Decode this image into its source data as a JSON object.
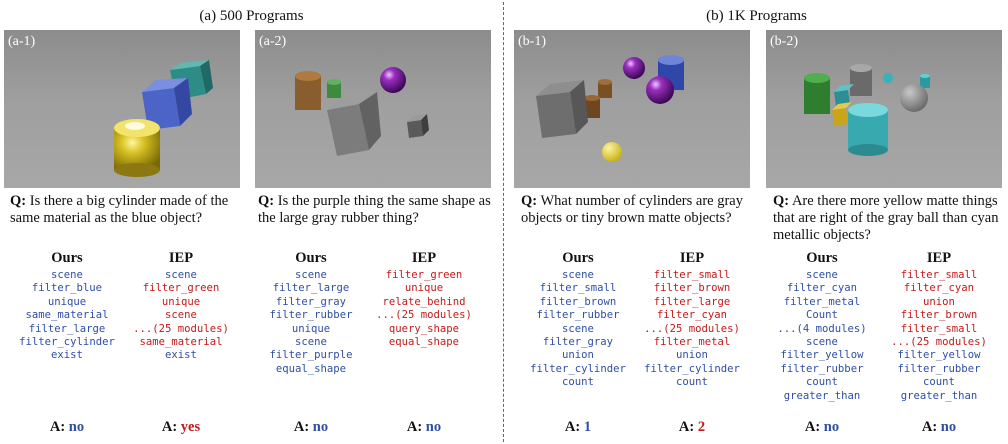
{
  "headers": {
    "left": "(a) 500 Programs",
    "right": "(b) 1K Programs"
  },
  "panels": [
    {
      "label": "(a-1)",
      "question_prefix": "Q:",
      "question": "Is there a big cylinder made of the same material as the blue object?",
      "ours": {
        "header": "Ours",
        "modules": [
          "scene",
          "filter_blue",
          "unique",
          "same_material",
          "filter_large",
          "filter_cylinder",
          "exist"
        ],
        "answer_prefix": "A:",
        "answer": "no",
        "answer_color": "#2e4fa3"
      },
      "iep": {
        "header": "IEP",
        "modules": [
          "scene",
          "filter_green",
          "unique",
          "scene",
          "...(25 modules)",
          "same_material",
          "exist"
        ],
        "module_colors": [
          "blue",
          "red",
          "red",
          "red",
          "red",
          "red",
          "blue"
        ],
        "answer_prefix": "A:",
        "answer": "yes",
        "answer_color": "#c41a1a"
      }
    },
    {
      "label": "(a-2)",
      "question_prefix": "Q:",
      "question": "Is the purple thing the same shape as the large gray rubber thing?",
      "ours": {
        "header": "Ours",
        "modules": [
          "scene",
          "filter_large",
          "filter_gray",
          "filter_rubber",
          "unique",
          "scene",
          "filter_purple",
          "equal_shape"
        ],
        "answer_prefix": "A:",
        "answer": "no",
        "answer_color": "#2e4fa3"
      },
      "iep": {
        "header": "IEP",
        "modules": [
          "filter_green",
          "unique",
          "relate_behind",
          "...(25 modules)",
          "query_shape",
          "equal_shape"
        ],
        "module_colors": [
          "red",
          "red",
          "red",
          "red",
          "red",
          "red"
        ],
        "answer_prefix": "A:",
        "answer": "no",
        "answer_color": "#2e4fa3"
      }
    },
    {
      "label": "(b-1)",
      "question_prefix": "Q:",
      "question": "What number of cylinders are gray objects or tiny brown matte objects?",
      "ours": {
        "header": "Ours",
        "modules": [
          "scene",
          "filter_small",
          "filter_brown",
          "filter_rubber",
          "scene",
          "filter_gray",
          "union",
          "filter_cylinder",
          "count"
        ],
        "answer_prefix": "A:",
        "answer": "1",
        "answer_color": "#2e4fa3"
      },
      "iep": {
        "header": "IEP",
        "modules": [
          "filter_small",
          "filter_brown",
          "filter_large",
          "filter_cyan",
          "...(25 modules)",
          "filter_metal",
          "union",
          "filter_cylinder",
          "count"
        ],
        "module_colors": [
          "red",
          "red",
          "red",
          "red",
          "red",
          "red",
          "blue",
          "blue",
          "blue"
        ],
        "answer_prefix": "A:",
        "answer": "2",
        "answer_color": "#c41a1a"
      }
    },
    {
      "label": "(b-2)",
      "question_prefix": "Q:",
      "question": "Are there more yellow matte things that are right of the gray ball than cyan metallic objects?",
      "ours": {
        "header": "Ours",
        "modules": [
          "scene",
          "filter_cyan",
          "filter_metal",
          "Count",
          "...(4 modules)",
          "scene",
          "filter_yellow",
          "filter_rubber",
          "count",
          "greater_than"
        ],
        "answer_prefix": "A:",
        "answer": "no",
        "answer_color": "#2e4fa3"
      },
      "iep": {
        "header": "IEP",
        "modules": [
          "filter_small",
          "filter_cyan",
          "union",
          "filter_brown",
          "filter_small",
          "...(25 modules)",
          "filter_yellow",
          "filter_rubber",
          "count",
          "greater_than"
        ],
        "module_colors": [
          "red",
          "red",
          "red",
          "red",
          "red",
          "red",
          "blue",
          "blue",
          "blue",
          "blue"
        ],
        "answer_prefix": "A:",
        "answer": "no",
        "answer_color": "#2e4fa3"
      }
    }
  ]
}
